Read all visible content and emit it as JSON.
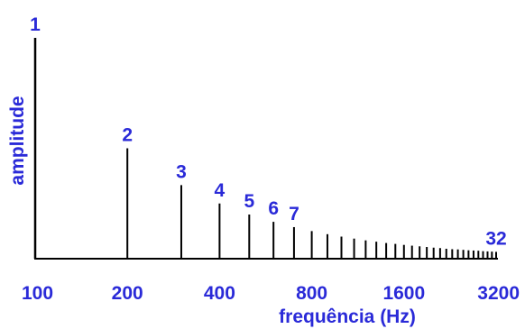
{
  "chart_data": {
    "type": "bar",
    "title": "",
    "xlabel": "frequência (Hz)",
    "ylabel": "amplitude",
    "x_scale": "log2",
    "xlim": [
      100,
      3200
    ],
    "ylim": [
      0,
      1
    ],
    "grid": false,
    "x_ticks": [
      {
        "value": 100,
        "label": "100"
      },
      {
        "value": 200,
        "label": "200"
      },
      {
        "value": 400,
        "label": "400"
      },
      {
        "value": 800,
        "label": "800"
      },
      {
        "value": 1600,
        "label": "1600"
      },
      {
        "value": 3200,
        "label": "3200"
      }
    ],
    "fundamental_hz": 100,
    "harmonics": [
      {
        "n": 1,
        "freq": 100,
        "amplitude": 1.0,
        "label": "1"
      },
      {
        "n": 2,
        "freq": 200,
        "amplitude": 0.5,
        "label": "2"
      },
      {
        "n": 3,
        "freq": 300,
        "amplitude": 0.333,
        "label": "3"
      },
      {
        "n": 4,
        "freq": 400,
        "amplitude": 0.25,
        "label": "4"
      },
      {
        "n": 5,
        "freq": 500,
        "amplitude": 0.2,
        "label": "5"
      },
      {
        "n": 6,
        "freq": 600,
        "amplitude": 0.167,
        "label": "6"
      },
      {
        "n": 7,
        "freq": 700,
        "amplitude": 0.143,
        "label": "7"
      },
      {
        "n": 8,
        "freq": 800,
        "amplitude": 0.125,
        "label": ""
      },
      {
        "n": 9,
        "freq": 900,
        "amplitude": 0.111,
        "label": ""
      },
      {
        "n": 10,
        "freq": 1000,
        "amplitude": 0.1,
        "label": ""
      },
      {
        "n": 11,
        "freq": 1100,
        "amplitude": 0.091,
        "label": ""
      },
      {
        "n": 12,
        "freq": 1200,
        "amplitude": 0.083,
        "label": ""
      },
      {
        "n": 13,
        "freq": 1300,
        "amplitude": 0.077,
        "label": ""
      },
      {
        "n": 14,
        "freq": 1400,
        "amplitude": 0.071,
        "label": ""
      },
      {
        "n": 15,
        "freq": 1500,
        "amplitude": 0.067,
        "label": ""
      },
      {
        "n": 16,
        "freq": 1600,
        "amplitude": 0.0625,
        "label": ""
      },
      {
        "n": 17,
        "freq": 1700,
        "amplitude": 0.059,
        "label": ""
      },
      {
        "n": 18,
        "freq": 1800,
        "amplitude": 0.056,
        "label": ""
      },
      {
        "n": 19,
        "freq": 1900,
        "amplitude": 0.053,
        "label": ""
      },
      {
        "n": 20,
        "freq": 2000,
        "amplitude": 0.05,
        "label": ""
      },
      {
        "n": 21,
        "freq": 2100,
        "amplitude": 0.048,
        "label": ""
      },
      {
        "n": 22,
        "freq": 2200,
        "amplitude": 0.045,
        "label": ""
      },
      {
        "n": 23,
        "freq": 2300,
        "amplitude": 0.043,
        "label": ""
      },
      {
        "n": 24,
        "freq": 2400,
        "amplitude": 0.042,
        "label": ""
      },
      {
        "n": 25,
        "freq": 2500,
        "amplitude": 0.04,
        "label": ""
      },
      {
        "n": 26,
        "freq": 2600,
        "amplitude": 0.038,
        "label": ""
      },
      {
        "n": 27,
        "freq": 2700,
        "amplitude": 0.037,
        "label": ""
      },
      {
        "n": 28,
        "freq": 2800,
        "amplitude": 0.036,
        "label": ""
      },
      {
        "n": 29,
        "freq": 2900,
        "amplitude": 0.034,
        "label": ""
      },
      {
        "n": 30,
        "freq": 3000,
        "amplitude": 0.033,
        "label": ""
      },
      {
        "n": 31,
        "freq": 3100,
        "amplitude": 0.032,
        "label": ""
      },
      {
        "n": 32,
        "freq": 3200,
        "amplitude": 0.031,
        "label": "32"
      }
    ],
    "colors": {
      "text": "#2a2ad8",
      "bars": "#000000",
      "axis": "#000000"
    }
  }
}
